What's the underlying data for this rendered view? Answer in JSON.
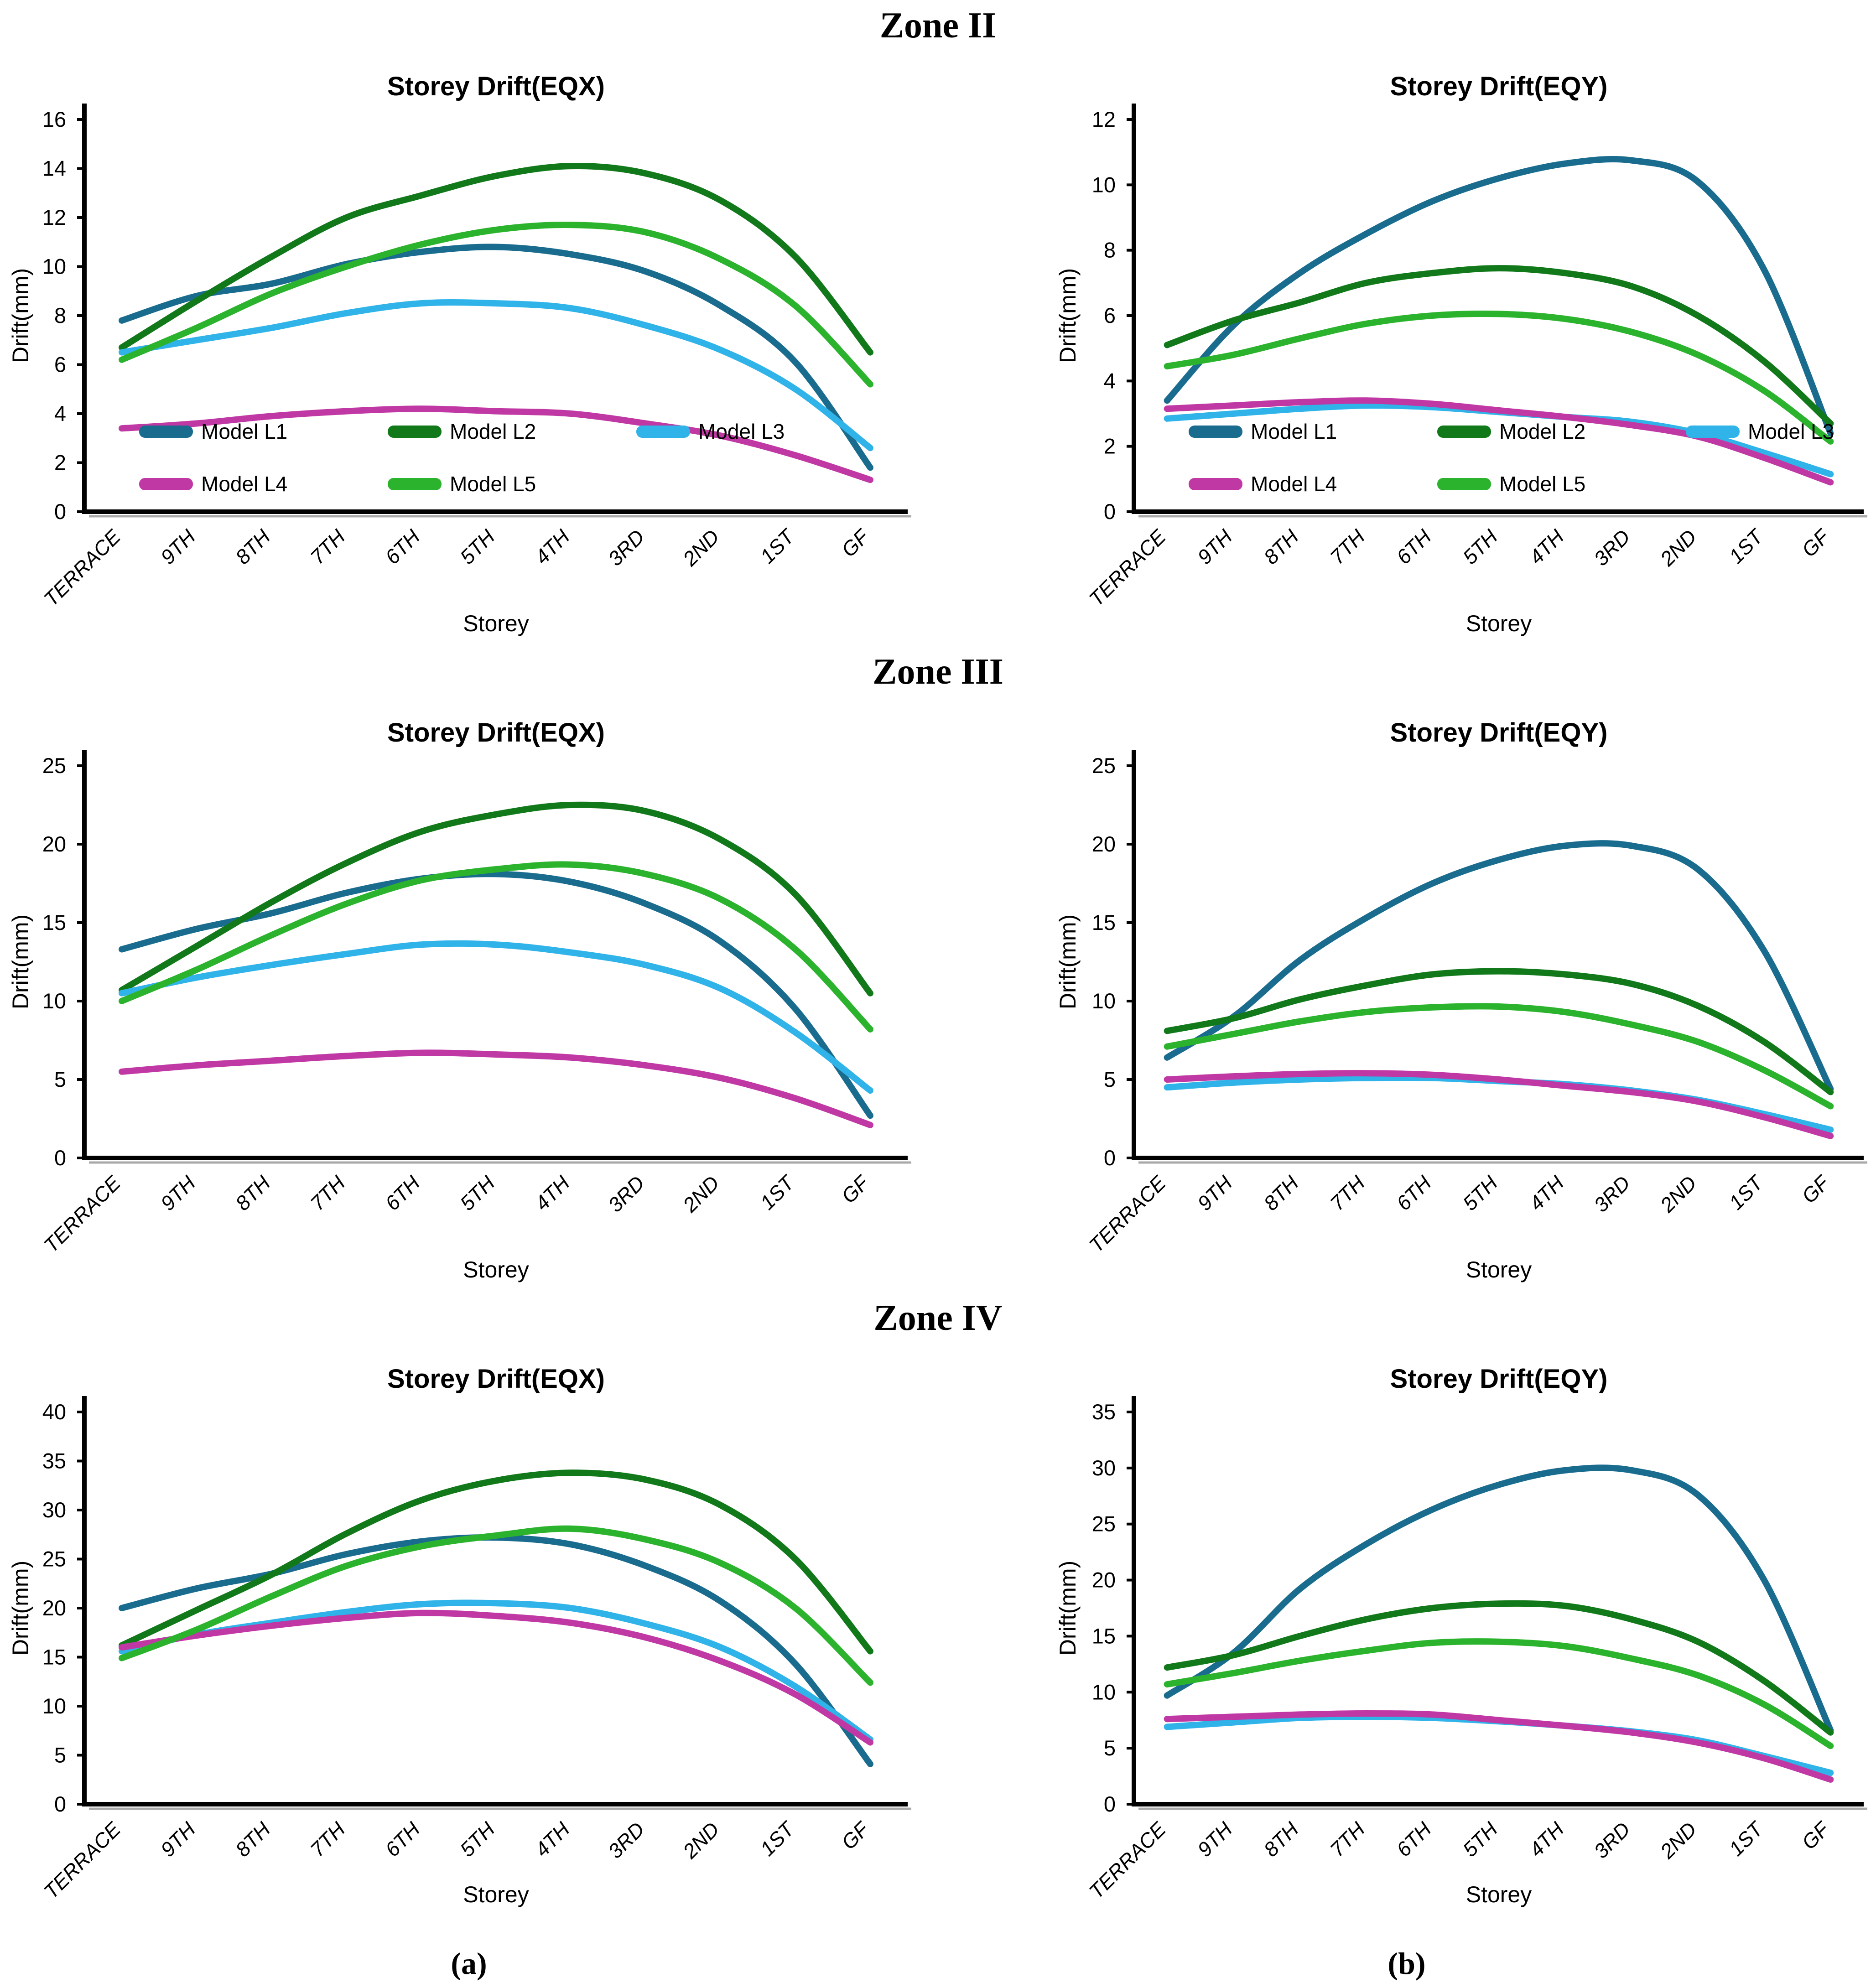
{
  "page": {
    "zone_headings": [
      "Zone II",
      "Zone III",
      "Zone IV"
    ],
    "panel_labels": [
      "(a)",
      "(b)"
    ]
  },
  "colors": {
    "model_l1": "#1A6C8E",
    "model_l2": "#12791B",
    "model_l3": "#2FB3E8",
    "model_l4": "#C038A3",
    "model_l5": "#2CB32E"
  },
  "categories": [
    "TERRACE",
    "9TH",
    "8TH",
    "7TH",
    "6TH",
    "5TH",
    "4TH",
    "3RD",
    "2ND",
    "1ST",
    "GF"
  ],
  "chart_data": [
    {
      "type": "line",
      "zone": "Zone II",
      "panel": "a",
      "title": "Storey Drift(EQX)",
      "xlabel": "Storey",
      "ylabel": "Drift(mm)",
      "ylim": [
        0,
        16
      ],
      "ytick": 2,
      "grid": false,
      "legend": true,
      "legend_position": "inside-bottom-left",
      "categories": [
        "TERRACE",
        "9TH",
        "8TH",
        "7TH",
        "6TH",
        "5TH",
        "4TH",
        "3RD",
        "2ND",
        "1ST",
        "GF"
      ],
      "series": [
        {
          "name": "Model L1",
          "color": "#1A6C8E",
          "values": [
            7.8,
            8.8,
            9.3,
            10.1,
            10.6,
            10.8,
            10.5,
            9.8,
            8.4,
            6.1,
            1.8
          ]
        },
        {
          "name": "Model L2",
          "color": "#12791B",
          "values": [
            6.7,
            8.6,
            10.4,
            12.0,
            12.9,
            13.7,
            14.1,
            13.8,
            12.7,
            10.4,
            6.5
          ]
        },
        {
          "name": "Model L3",
          "color": "#2FB3E8",
          "values": [
            6.5,
            7.0,
            7.5,
            8.1,
            8.5,
            8.5,
            8.3,
            7.6,
            6.6,
            5.0,
            2.6
          ]
        },
        {
          "name": "Model L4",
          "color": "#C038A3",
          "values": [
            3.4,
            3.6,
            3.9,
            4.1,
            4.2,
            4.1,
            4.0,
            3.6,
            3.1,
            2.3,
            1.3
          ]
        },
        {
          "name": "Model L5",
          "color": "#2CB32E",
          "values": [
            6.2,
            7.5,
            8.9,
            10.0,
            10.9,
            11.5,
            11.7,
            11.4,
            10.3,
            8.4,
            5.2
          ]
        }
      ]
    },
    {
      "type": "line",
      "zone": "Zone II",
      "panel": "b",
      "title": "Storey Drift(EQY)",
      "xlabel": "Storey",
      "ylabel": "Drift(mm)",
      "ylim": [
        0,
        12
      ],
      "ytick": 2,
      "grid": false,
      "legend": true,
      "legend_position": "inside-bottom-left",
      "categories": [
        "TERRACE",
        "9TH",
        "8TH",
        "7TH",
        "6TH",
        "5TH",
        "4TH",
        "3RD",
        "2ND",
        "1ST",
        "GF"
      ],
      "series": [
        {
          "name": "Model L1",
          "color": "#1A6C8E",
          "values": [
            3.4,
            5.7,
            7.3,
            8.5,
            9.5,
            10.2,
            10.65,
            10.75,
            10.1,
            7.4,
            2.4
          ]
        },
        {
          "name": "Model L2",
          "color": "#12791B",
          "values": [
            5.1,
            5.85,
            6.4,
            7.0,
            7.3,
            7.45,
            7.3,
            6.9,
            6.0,
            4.6,
            2.7
          ]
        },
        {
          "name": "Model L3",
          "color": "#2FB3E8",
          "values": [
            2.85,
            3.0,
            3.15,
            3.25,
            3.2,
            3.05,
            2.9,
            2.75,
            2.4,
            1.8,
            1.15
          ]
        },
        {
          "name": "Model L4",
          "color": "#C038A3",
          "values": [
            3.15,
            3.25,
            3.35,
            3.4,
            3.3,
            3.1,
            2.9,
            2.65,
            2.3,
            1.65,
            0.9
          ]
        },
        {
          "name": "Model L5",
          "color": "#2CB32E",
          "values": [
            4.45,
            4.8,
            5.3,
            5.75,
            6.0,
            6.05,
            5.9,
            5.5,
            4.8,
            3.7,
            2.15
          ]
        }
      ]
    },
    {
      "type": "line",
      "zone": "Zone III",
      "panel": "a",
      "title": "Storey Drift(EQX)",
      "xlabel": "Storey",
      "ylabel": "Drift(mm)",
      "ylim": [
        0,
        25
      ],
      "ytick": 5,
      "grid": false,
      "legend": false,
      "categories": [
        "TERRACE",
        "9TH",
        "8TH",
        "7TH",
        "6TH",
        "5TH",
        "4TH",
        "3RD",
        "2ND",
        "1ST",
        "GF"
      ],
      "series": [
        {
          "name": "Model L1",
          "color": "#1A6C8E",
          "values": [
            13.3,
            14.6,
            15.6,
            16.9,
            17.8,
            18.1,
            17.6,
            16.2,
            13.8,
            9.5,
            2.7
          ]
        },
        {
          "name": "Model L2",
          "color": "#12791B",
          "values": [
            10.7,
            13.5,
            16.3,
            18.8,
            20.8,
            21.9,
            22.5,
            22.1,
            20.3,
            16.8,
            10.5
          ]
        },
        {
          "name": "Model L3",
          "color": "#2FB3E8",
          "values": [
            10.5,
            11.5,
            12.3,
            13.0,
            13.6,
            13.6,
            13.1,
            12.3,
            10.8,
            8.0,
            4.3
          ]
        },
        {
          "name": "Model L4",
          "color": "#C038A3",
          "values": [
            5.5,
            5.9,
            6.2,
            6.5,
            6.7,
            6.6,
            6.4,
            5.9,
            5.1,
            3.8,
            2.1
          ]
        },
        {
          "name": "Model L5",
          "color": "#2CB32E",
          "values": [
            10.0,
            12.0,
            14.2,
            16.2,
            17.7,
            18.4,
            18.7,
            18.1,
            16.5,
            13.3,
            8.2
          ]
        }
      ]
    },
    {
      "type": "line",
      "zone": "Zone III",
      "panel": "b",
      "title": "Storey Drift(EQY)",
      "xlabel": "Storey",
      "ylabel": "Drift(mm)",
      "ylim": [
        0,
        25
      ],
      "ytick": 5,
      "grid": false,
      "legend": false,
      "categories": [
        "TERRACE",
        "9TH",
        "8TH",
        "7TH",
        "6TH",
        "5TH",
        "4TH",
        "3RD",
        "2ND",
        "1ST",
        "GF"
      ],
      "series": [
        {
          "name": "Model L1",
          "color": "#1A6C8E",
          "values": [
            6.4,
            9.0,
            12.6,
            15.3,
            17.5,
            19.0,
            19.9,
            19.9,
            18.4,
            13.2,
            4.4
          ]
        },
        {
          "name": "Model L2",
          "color": "#12791B",
          "values": [
            8.1,
            8.9,
            10.1,
            11.0,
            11.7,
            11.9,
            11.7,
            11.1,
            9.7,
            7.4,
            4.2
          ]
        },
        {
          "name": "Model L3",
          "color": "#2FB3E8",
          "values": [
            4.5,
            4.8,
            5.0,
            5.1,
            5.1,
            4.9,
            4.7,
            4.3,
            3.7,
            2.8,
            1.8
          ]
        },
        {
          "name": "Model L4",
          "color": "#C038A3",
          "values": [
            5.0,
            5.2,
            5.35,
            5.4,
            5.3,
            5.0,
            4.6,
            4.2,
            3.6,
            2.6,
            1.4
          ]
        },
        {
          "name": "Model L5",
          "color": "#2CB32E",
          "values": [
            7.1,
            7.9,
            8.7,
            9.3,
            9.6,
            9.65,
            9.3,
            8.5,
            7.4,
            5.6,
            3.3
          ]
        }
      ]
    },
    {
      "type": "line",
      "zone": "Zone IV",
      "panel": "a",
      "title": "Storey Drift(EQX)",
      "xlabel": "Storey",
      "ylabel": "Drift(mm)",
      "ylim": [
        0,
        40
      ],
      "ytick": 5,
      "grid": false,
      "legend": false,
      "categories": [
        "TERRACE",
        "9TH",
        "8TH",
        "7TH",
        "6TH",
        "5TH",
        "4TH",
        "3RD",
        "2ND",
        "1ST",
        "GF"
      ],
      "series": [
        {
          "name": "Model L1",
          "color": "#1A6C8E",
          "values": [
            20.0,
            22.0,
            23.5,
            25.5,
            26.8,
            27.2,
            26.5,
            24.3,
            20.7,
            14.3,
            4.1
          ]
        },
        {
          "name": "Model L2",
          "color": "#12791B",
          "values": [
            16.2,
            19.8,
            23.4,
            27.6,
            31.0,
            33.0,
            33.8,
            33.1,
            30.5,
            25.0,
            15.6
          ]
        },
        {
          "name": "Model L3",
          "color": "#2FB3E8",
          "values": [
            15.6,
            17.3,
            18.5,
            19.6,
            20.4,
            20.5,
            20.0,
            18.4,
            16.0,
            12.0,
            6.6
          ]
        },
        {
          "name": "Model L4",
          "color": "#C038A3",
          "values": [
            16.0,
            17.2,
            18.2,
            19.0,
            19.5,
            19.2,
            18.5,
            17.0,
            14.6,
            11.2,
            6.3
          ]
        },
        {
          "name": "Model L5",
          "color": "#2CB32E",
          "values": [
            14.9,
            17.8,
            21.2,
            24.3,
            26.3,
            27.4,
            28.1,
            27.0,
            24.6,
            20.0,
            12.4
          ]
        }
      ]
    },
    {
      "type": "line",
      "zone": "Zone IV",
      "panel": "b",
      "title": "Storey Drift(EQY)",
      "xlabel": "Storey",
      "ylabel": "Drift(mm)",
      "ylim": [
        0,
        35
      ],
      "ytick": 5,
      "grid": false,
      "legend": false,
      "categories": [
        "TERRACE",
        "9TH",
        "8TH",
        "7TH",
        "6TH",
        "5TH",
        "4TH",
        "3RD",
        "2ND",
        "1ST",
        "GF"
      ],
      "series": [
        {
          "name": "Model L1",
          "color": "#1A6C8E",
          "values": [
            9.7,
            13.5,
            19.2,
            23.2,
            26.3,
            28.5,
            29.8,
            29.8,
            27.6,
            20.0,
            6.6
          ]
        },
        {
          "name": "Model L2",
          "color": "#12791B",
          "values": [
            12.2,
            13.3,
            15.0,
            16.5,
            17.5,
            17.9,
            17.7,
            16.5,
            14.5,
            11.0,
            6.4
          ]
        },
        {
          "name": "Model L3",
          "color": "#2FB3E8",
          "values": [
            6.9,
            7.3,
            7.7,
            7.8,
            7.7,
            7.4,
            7.0,
            6.5,
            5.7,
            4.3,
            2.8
          ]
        },
        {
          "name": "Model L4",
          "color": "#C038A3",
          "values": [
            7.6,
            7.8,
            8.0,
            8.1,
            8.0,
            7.5,
            7.0,
            6.4,
            5.5,
            4.1,
            2.2
          ]
        },
        {
          "name": "Model L5",
          "color": "#2CB32E",
          "values": [
            10.7,
            11.7,
            12.8,
            13.7,
            14.4,
            14.5,
            14.1,
            13.0,
            11.5,
            8.9,
            5.2
          ]
        }
      ]
    }
  ]
}
